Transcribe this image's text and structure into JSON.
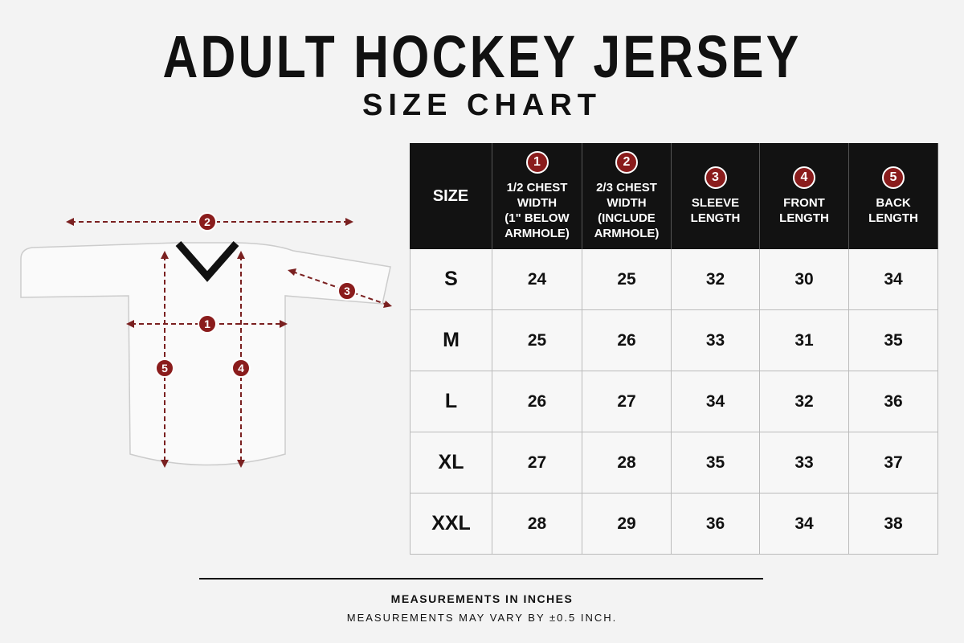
{
  "header": {
    "title": "ADULT HOCKEY JERSEY",
    "subtitle": "SIZE CHART"
  },
  "diagram": {
    "markers": [
      "2",
      "1",
      "3",
      "5",
      "4"
    ]
  },
  "table": {
    "size_header": "SIZE",
    "columns": [
      {
        "number": "1",
        "label_lines": [
          "1/2 CHEST",
          "WIDTH",
          "(1\" BELOW",
          "ARMHOLE)"
        ]
      },
      {
        "number": "2",
        "label_lines": [
          "2/3 CHEST",
          "WIDTH",
          "(INCLUDE",
          "ARMHOLE)"
        ]
      },
      {
        "number": "3",
        "label_lines": [
          "SLEEVE",
          "LENGTH"
        ]
      },
      {
        "number": "4",
        "label_lines": [
          "FRONT",
          "LENGTH"
        ]
      },
      {
        "number": "5",
        "label_lines": [
          "BACK",
          "LENGTH"
        ]
      }
    ],
    "rows": [
      [
        "S",
        24,
        25,
        32,
        30,
        34
      ],
      [
        "M",
        25,
        26,
        33,
        31,
        35
      ],
      [
        "L",
        26,
        27,
        34,
        32,
        36
      ],
      [
        "XL",
        27,
        28,
        35,
        33,
        37
      ],
      [
        "XXL",
        28,
        29,
        36,
        34,
        38
      ]
    ]
  },
  "footer": {
    "note": "MEASUREMENTS IN INCHES",
    "disclaimer": "MEASUREMENTS MAY VARY BY ±0.5 INCH."
  }
}
